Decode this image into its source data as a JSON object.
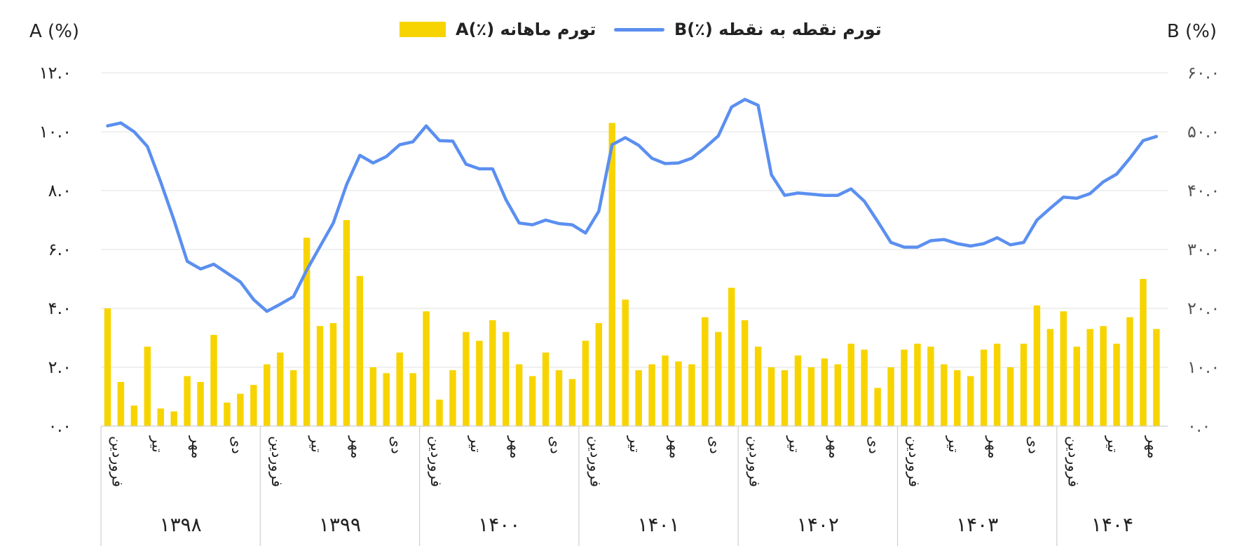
{
  "legend": {
    "bar_label": "تورم ماهانه (٪)A",
    "line_label": "تورم نقطه به نقطه (٪)B"
  },
  "axes": {
    "left_title": "A (%)",
    "right_title": "B (%)"
  },
  "colors": {
    "bar": "#F7D400",
    "line": "#5B8FF0",
    "grid": "#e6e6e6",
    "text": "#222222"
  },
  "chart_data": {
    "type": "bar+line",
    "left_axis": {
      "range": [
        0,
        12
      ],
      "ticks": [
        "۰.۰",
        "۲.۰",
        "۴.۰",
        "۶.۰",
        "۸.۰",
        "۱۰.۰",
        "۱۲.۰"
      ]
    },
    "right_axis": {
      "range": [
        0,
        60
      ],
      "ticks": [
        "۰.۰",
        "۱۰.۰",
        "۲۰.۰",
        "۳۰.۰",
        "۴۰.۰",
        "۵۰.۰",
        "۶۰.۰"
      ]
    },
    "grid": true,
    "legend_position": "top",
    "years": [
      {
        "label": "۱۳۹۸",
        "months": 12
      },
      {
        "label": "۱۳۹۹",
        "months": 12
      },
      {
        "label": "۱۴۰۰",
        "months": 12
      },
      {
        "label": "۱۴۰۱",
        "months": 12
      },
      {
        "label": "۱۴۰۲",
        "months": 12
      },
      {
        "label": "۱۴۰۳",
        "months": 12
      },
      {
        "label": "۱۴۰۴",
        "months": 8
      }
    ],
    "season_labels": [
      "فروردین",
      "تیر",
      "مهر",
      "دی"
    ],
    "monthly_inflation_A": [
      4.0,
      1.5,
      0.7,
      2.7,
      0.6,
      0.5,
      1.7,
      1.5,
      3.1,
      0.8,
      1.1,
      1.4,
      2.1,
      2.5,
      1.9,
      6.4,
      3.4,
      3.5,
      7.0,
      5.1,
      2.0,
      1.8,
      2.5,
      1.8,
      3.9,
      0.9,
      1.9,
      3.2,
      2.9,
      3.6,
      3.2,
      2.1,
      1.7,
      2.5,
      1.9,
      1.6,
      2.9,
      3.5,
      10.3,
      4.3,
      1.9,
      2.1,
      2.4,
      2.2,
      2.1,
      3.7,
      3.2,
      4.7,
      3.6,
      2.7,
      2.0,
      1.9,
      2.4,
      2.0,
      2.3,
      2.1,
      2.8,
      2.6,
      1.3,
      2.0,
      2.6,
      2.8,
      2.7,
      2.1,
      1.9,
      1.7,
      2.6,
      2.8,
      2.0,
      2.8,
      4.1,
      3.3,
      3.9,
      2.7,
      3.3,
      3.4,
      2.8,
      3.7,
      5.0,
      3.3
    ],
    "point_inflation_B": [
      51.0,
      51.5,
      50.0,
      47.5,
      41.5,
      35.0,
      28.0,
      26.7,
      27.5,
      26.0,
      24.5,
      21.5,
      19.5,
      20.7,
      22.0,
      26.5,
      30.5,
      34.5,
      41.0,
      46.0,
      44.7,
      45.8,
      47.8,
      48.3,
      51.0,
      48.5,
      48.4,
      44.5,
      43.7,
      43.7,
      38.5,
      34.5,
      34.2,
      35.0,
      34.4,
      34.2,
      32.8,
      36.5,
      47.8,
      49.0,
      47.7,
      45.5,
      44.6,
      44.7,
      45.5,
      47.3,
      49.3,
      54.2,
      55.5,
      54.5,
      42.7,
      39.2,
      39.6,
      39.4,
      39.2,
      39.2,
      40.3,
      38.2,
      34.8,
      31.2,
      30.4,
      30.4,
      31.5,
      31.7,
      31.0,
      30.6,
      31.0,
      32.0,
      30.8,
      31.2,
      35.0,
      37.0,
      38.9,
      38.7,
      39.5,
      41.5,
      42.8,
      45.5,
      48.5,
      49.2
    ]
  }
}
